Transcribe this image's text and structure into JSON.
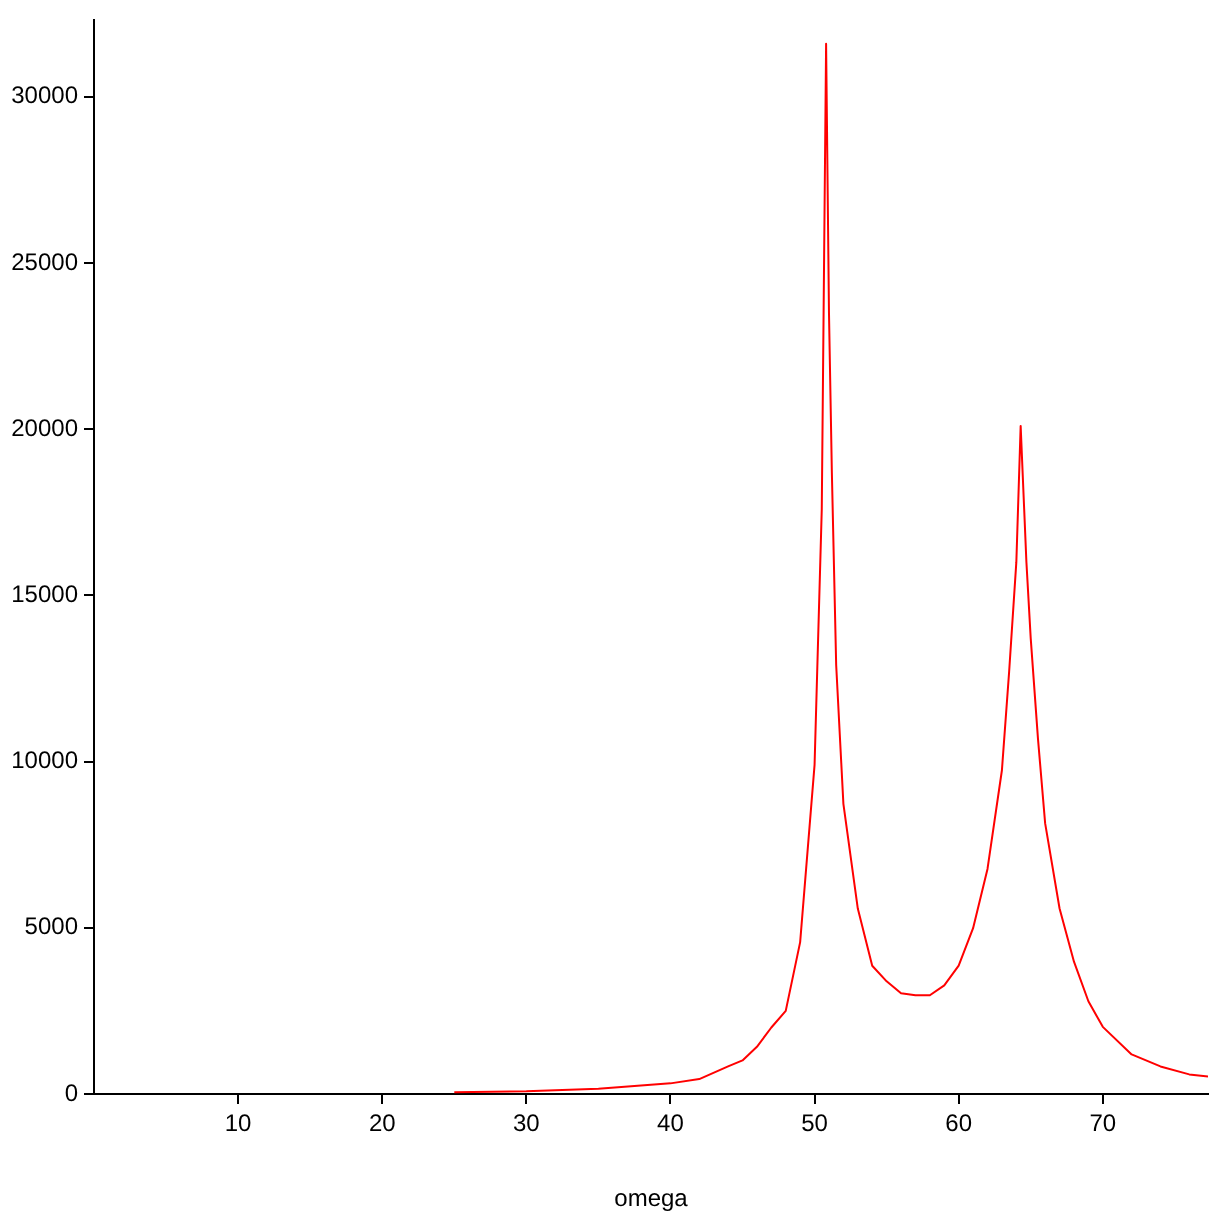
{
  "chart_data": {
    "type": "line",
    "xlabel": "omega",
    "x": [
      25,
      30,
      35,
      40,
      42,
      44,
      45,
      46,
      47,
      48,
      49,
      50,
      50.5,
      50.8,
      51,
      51.2,
      51.5,
      52,
      53,
      54,
      55,
      56,
      57,
      58,
      59,
      60,
      61,
      62,
      63,
      63.5,
      64,
      64.3,
      64.7,
      65,
      65.5,
      66,
      67,
      68,
      69,
      70,
      72,
      74,
      76,
      77.3
    ],
    "series": [
      {
        "color": "#ff0000",
        "values": [
          50,
          80,
          160,
          320,
          450,
          830,
          1010,
          1420,
          2000,
          2500,
          4570,
          9900,
          17600,
          31600,
          23500,
          18700,
          12900,
          8730,
          5580,
          3860,
          3390,
          3030,
          2970,
          2970,
          3270,
          3860,
          4990,
          6770,
          9740,
          12700,
          16000,
          20100,
          16000,
          13700,
          10700,
          8140,
          5580,
          3980,
          2790,
          2020,
          1190,
          830,
          590,
          530
        ]
      }
    ],
    "xlim": [
      0,
      77.3
    ],
    "ylim": [
      0,
      32300
    ],
    "xticks": [
      10,
      20,
      30,
      40,
      50,
      60,
      70
    ],
    "yticks": [
      0,
      5000,
      10000,
      15000,
      20000,
      25000,
      30000
    ],
    "grid": false,
    "legend": false,
    "marker": "none",
    "line_style": "solid"
  }
}
